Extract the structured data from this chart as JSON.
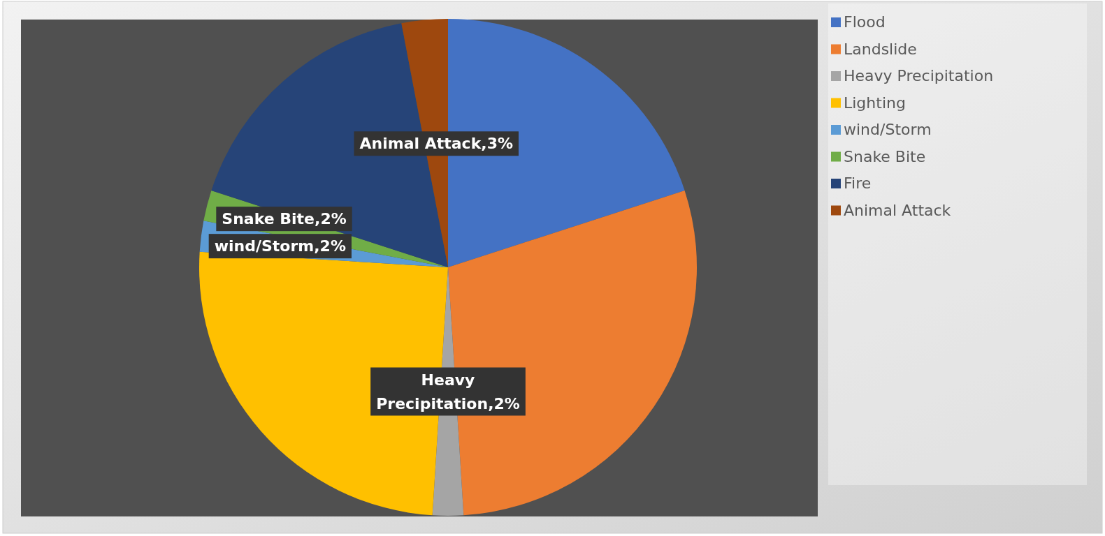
{
  "chart_data": {
    "type": "pie",
    "categories": [
      "Flood",
      "Landslide",
      "Heavy Precipitation",
      "Lighting",
      "wind/Storm",
      "Snake Bite",
      "Fire",
      "Animal Attack"
    ],
    "values": [
      20,
      29,
      2,
      25,
      2,
      2,
      17,
      3
    ],
    "colors": [
      "#4472c4",
      "#ed7d31",
      "#a5a5a5",
      "#ffc000",
      "#5b9bd5",
      "#70ad47",
      "#264478",
      "#9e480e"
    ],
    "value_labels": [
      null,
      null,
      "Heavy Precipitation,2%",
      null,
      "wind/Storm,2%",
      "Snake Bite,2%",
      null,
      "Animal Attack,3%"
    ],
    "legend": "right"
  }
}
